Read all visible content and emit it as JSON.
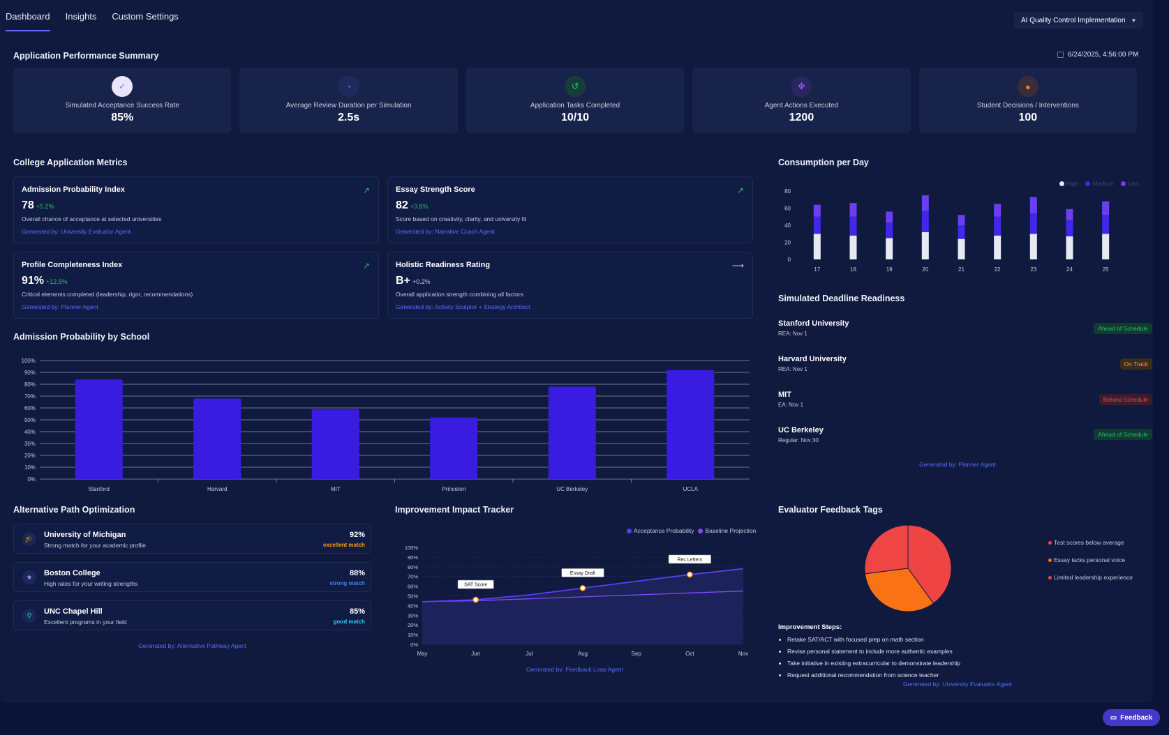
{
  "tabs": [
    "Dashboard",
    "Insights",
    "Custom Settings"
  ],
  "project_select": "AI Quality Control Implementation",
  "timestamp": "6/24/2025, 4:56:00 PM",
  "sections": {
    "summary": "Application Performance Summary",
    "metrics": "College Application Metrics",
    "consumption": "Consumption per Day",
    "deadline": "Simulated Deadline Readiness",
    "admission": "Admission Probability by School",
    "alt": "Alternative Path Optimization",
    "improvement": "Improvement Impact Tracker",
    "feedback": "Evaluator Feedback Tags"
  },
  "summary_cards": [
    {
      "label": "Simulated Acceptance Success Rate",
      "value": "85%",
      "icon": "check-icon",
      "icon_color": "#8b7cf6",
      "icon_bg": "#e9e5ff"
    },
    {
      "label": "Average Review Duration per Simulation",
      "value": "2.5s",
      "icon": "speedometer-icon",
      "icon_color": "#6366f1",
      "icon_bg": "#1e2a5c"
    },
    {
      "label": "Application Tasks Completed",
      "value": "10/10",
      "icon": "history-icon",
      "icon_color": "#22c55e",
      "icon_bg": "#163d3a"
    },
    {
      "label": "Agent Actions Executed",
      "value": "1200",
      "icon": "move-icon",
      "icon_color": "#8b5cf6",
      "icon_bg": "#2a2660"
    },
    {
      "label": "Student Decisions / Interventions",
      "value": "100",
      "icon": "user-icon",
      "icon_color": "#f97316",
      "icon_bg": "#3b2c3a"
    }
  ],
  "metrics": [
    {
      "title": "Admission Probability Index",
      "value": "78",
      "delta": "+5.2%",
      "desc": "Overall chance of acceptance at selected universities",
      "gen": "Generated by: University Evaluator Agent"
    },
    {
      "title": "Essay Strength Score",
      "value": "82",
      "delta": "+3.8%",
      "desc": "Score based on creativity, clarity, and university fit",
      "gen": "Generated by: Narrative Coach Agent"
    },
    {
      "title": "Profile Completeness Index",
      "value": "91%",
      "delta": "+12.5%",
      "desc": "Critical elements completed (leadership, rigor, recommendations)",
      "gen": "Generated by: Planner Agent"
    },
    {
      "title": "Holistic Readiness Rating",
      "value": "B+",
      "delta": "+0.2%",
      "desc": "Overall application strength combining all factors",
      "gen": "Generated by: Activity Sculptor + Strategy Architect"
    }
  ],
  "consumption_legend": [
    "High",
    "Medium",
    "Low"
  ],
  "deadlines": [
    {
      "name": "Stanford University",
      "sub": "REA: Nov 1",
      "status": "Ahead of Schedule"
    },
    {
      "name": "Harvard University",
      "sub": "REA: Nov 1",
      "status": "On Track"
    },
    {
      "name": "MIT",
      "sub": "EA: Nov 1",
      "status": "Behind Schedule"
    },
    {
      "name": "UC Berkeley",
      "sub": "Regular: Nov 30",
      "status": "Ahead of Schedule"
    }
  ],
  "deadline_gen": "Generated by: Planner Agent",
  "alt_paths": [
    {
      "name": "University of Michigan",
      "desc": "Strong match for your academic profile",
      "pct": "92%",
      "match": "excellent match",
      "icon": "graduation-cap-icon"
    },
    {
      "name": "Boston College",
      "desc": "High rates for your writing strengths",
      "pct": "88%",
      "match": "strong match",
      "icon": "star-icon"
    },
    {
      "name": "UNC Chapel Hill",
      "desc": "Excellent programs in your field",
      "pct": "85%",
      "match": "good match",
      "icon": "map-pin-icon"
    }
  ],
  "alt_gen": "Generated by: Alternative Pathway Agent",
  "improvement_gen": "Generated by: Feedback Loop Agent",
  "feedback_tags": [
    "Test scores below average",
    "Essay lacks personal voice",
    "Limited leadership experience"
  ],
  "steps_title": "Improvement Steps:",
  "steps": [
    "Retake SAT/ACT with focused prep on math section",
    "Revise personal statement to include more authentic examples",
    "Take initiative in existing extracurricular to demonstrate leadership",
    "Request additional recommendation from science teacher"
  ],
  "feedback_gen": "Generated by: University Evaluator Agent",
  "feedback_button": "Feedback",
  "chart_data": [
    {
      "type": "bar",
      "title": "Consumption per Day",
      "categories": [
        "17",
        "18",
        "19",
        "20",
        "21",
        "22",
        "23",
        "24",
        "25"
      ],
      "series": [
        {
          "name": "High",
          "values": [
            30,
            28,
            25,
            32,
            24,
            28,
            30,
            27,
            30
          ],
          "color": "#e6e8f2"
        },
        {
          "name": "Medium",
          "values": [
            20,
            22,
            18,
            25,
            16,
            22,
            24,
            19,
            22
          ],
          "color": "#4327e8"
        },
        {
          "name": "Low",
          "values": [
            14,
            16,
            13,
            18,
            12,
            15,
            19,
            13,
            16
          ],
          "color": "#6d3df0"
        }
      ],
      "stacked": true,
      "yticks": [
        "0",
        "20",
        "40",
        "60",
        "80"
      ],
      "ylim": [
        0,
        80
      ],
      "legend": "top-right"
    },
    {
      "type": "bar",
      "title": "Admission Probability by School",
      "categories": [
        "Stanford",
        "Harvard",
        "MIT",
        "Princeton",
        "UC Berkeley",
        "UCLA"
      ],
      "values": [
        84,
        68,
        59,
        52,
        78,
        92
      ],
      "yticks": [
        "0%",
        "10%",
        "20%",
        "30%",
        "40%",
        "50%",
        "60%",
        "70%",
        "80%",
        "90%",
        "100%"
      ],
      "ylim": [
        0,
        100
      ],
      "color": "#3a1ce0",
      "grid": true
    },
    {
      "type": "line",
      "title": "Improvement Impact Tracker",
      "categories": [
        "May",
        "Jun",
        "Jul",
        "Aug",
        "Sep",
        "Oct",
        "Nov"
      ],
      "series": [
        {
          "name": "Acceptance Probability",
          "values": [
            44,
            46,
            51,
            58,
            65,
            72,
            78
          ],
          "color": "#5b3df5"
        },
        {
          "name": "Baseline Projection",
          "values": [
            44,
            45,
            47,
            49,
            51,
            53,
            55
          ],
          "color": "#7c4df6"
        }
      ],
      "annotations": [
        {
          "label": "SAT Score",
          "x": "Jun",
          "y": 46
        },
        {
          "label": "Essay Draft",
          "x": "Aug",
          "y": 58
        },
        {
          "label": "Rec Letters",
          "x": "Oct",
          "y": 72
        }
      ],
      "yticks": [
        "0%",
        "10%",
        "20%",
        "30%",
        "40%",
        "50%",
        "60%",
        "70%",
        "80%",
        "90%",
        "100%"
      ],
      "ylim": [
        0,
        100
      ],
      "legend": "top-right"
    },
    {
      "type": "pie",
      "title": "Evaluator Feedback Tags",
      "labels": [
        "Test scores below average",
        "Essay lacks personal voice",
        "Limited leadership experience"
      ],
      "values": [
        40,
        33,
        27
      ],
      "colors": [
        "#ef4444",
        "#f97316",
        "#f04545"
      ]
    }
  ]
}
